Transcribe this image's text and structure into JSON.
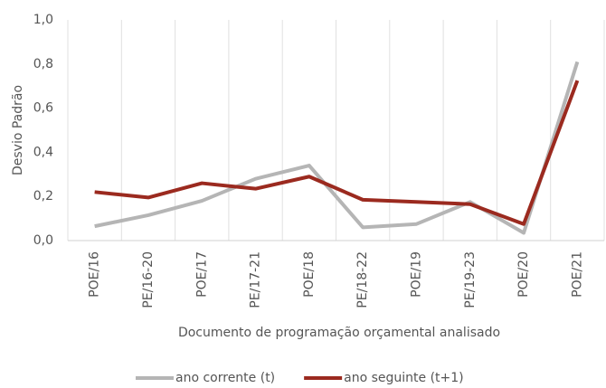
{
  "chart_data": {
    "type": "line",
    "x_label": "Documento de programação orçamental analisado",
    "y_label": "Desvio Padrão",
    "categories": [
      "POE/16",
      "PE/16-20",
      "POE/17",
      "PE/17-21",
      "POE/18",
      "PE/18-22",
      "POE/19",
      "PE/19-23",
      "POE/20",
      "POE/21"
    ],
    "series": [
      {
        "name": "ano corrente (t)",
        "color": "#b5b5b5",
        "values": [
          0.065,
          0.115,
          0.18,
          0.28,
          0.34,
          0.06,
          0.075,
          0.175,
          0.035,
          0.81
        ]
      },
      {
        "name": "ano seguinte (t+1)",
        "color": "#9b2a1f",
        "values": [
          0.22,
          0.195,
          0.26,
          0.235,
          0.29,
          0.185,
          0.175,
          0.165,
          0.075,
          0.725
        ]
      }
    ],
    "ylim": [
      0,
      1
    ],
    "yticks": [
      {
        "value": 0,
        "label": "0,0"
      },
      {
        "value": 0.2,
        "label": "0,2"
      },
      {
        "value": 0.4,
        "label": "0,4"
      },
      {
        "value": 0.6,
        "label": "0,6"
      },
      {
        "value": 0.8,
        "label": "0,8"
      },
      {
        "value": 1,
        "label": "1,0"
      }
    ],
    "legend": "bottom"
  }
}
